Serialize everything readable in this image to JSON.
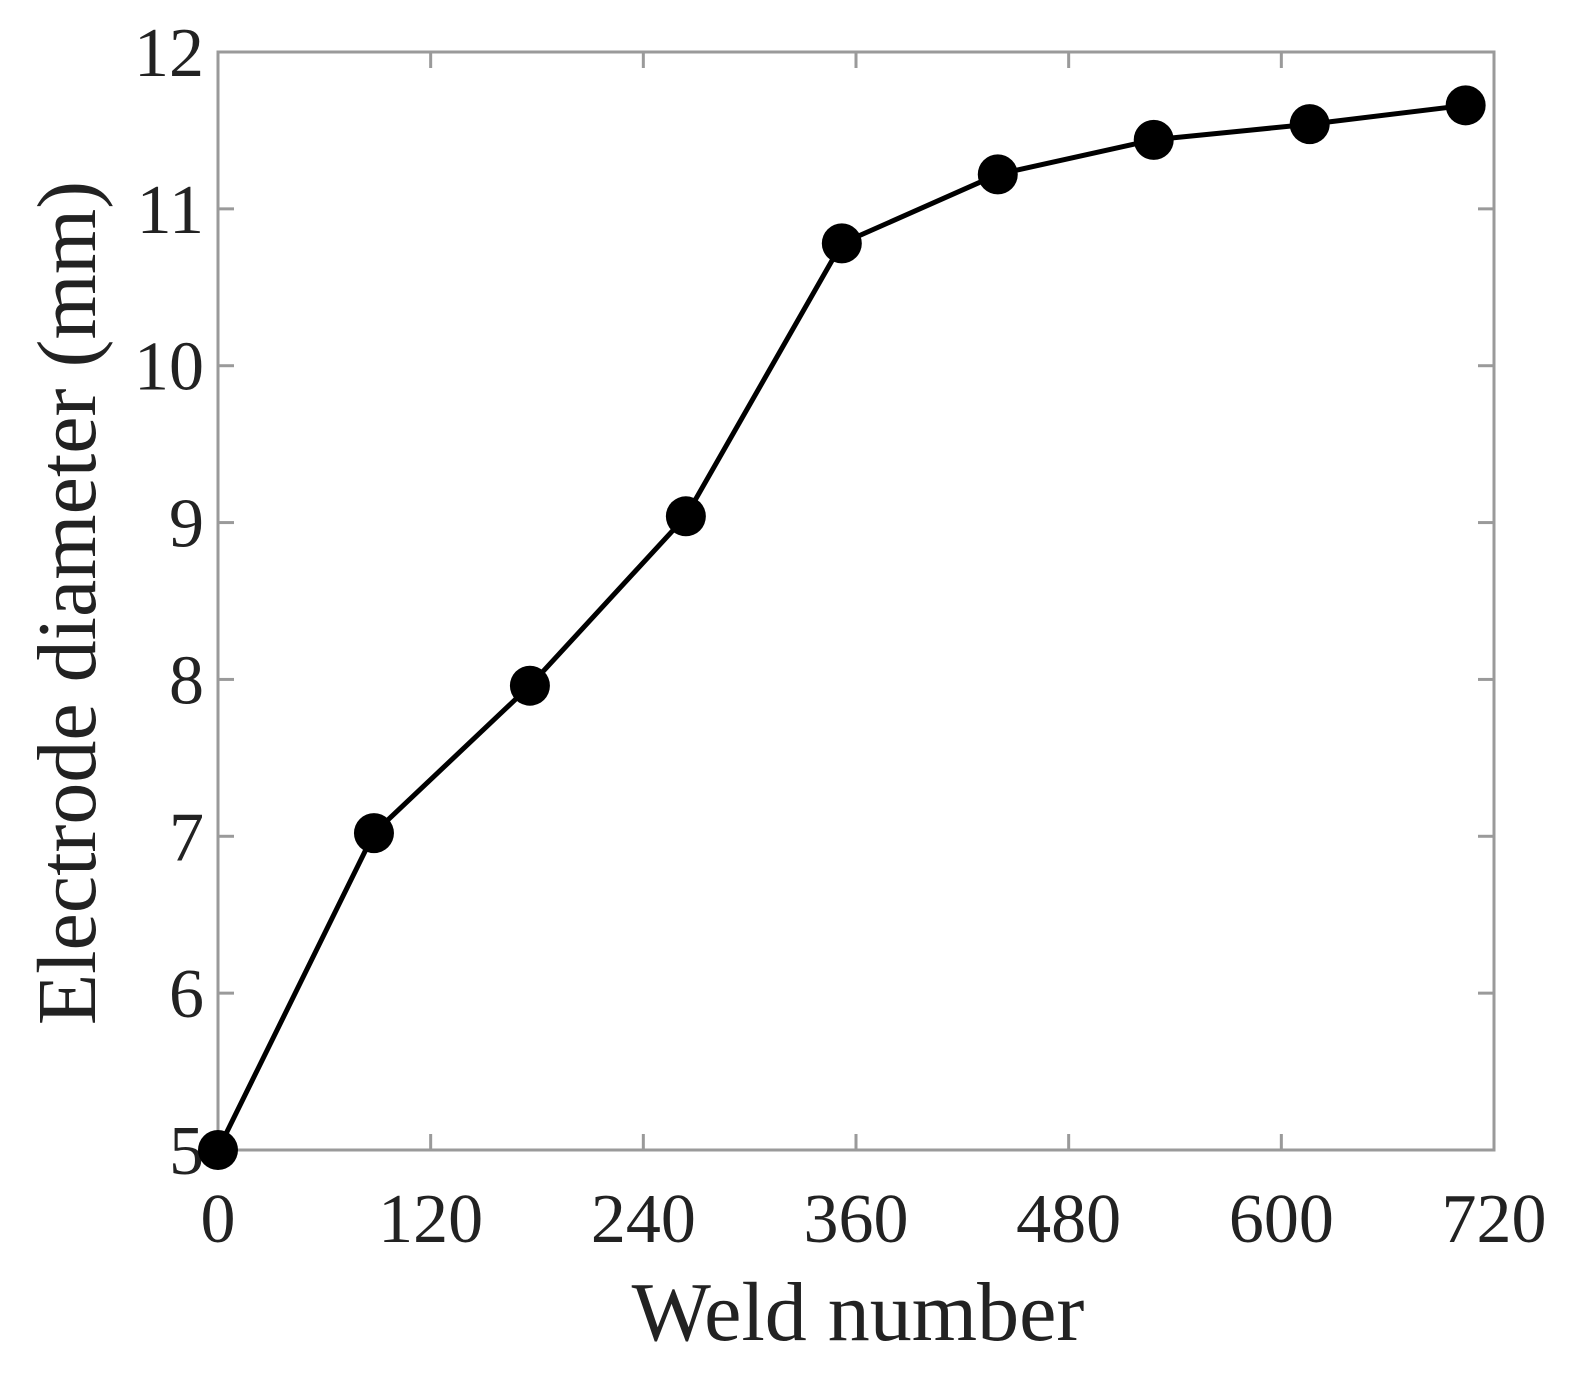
{
  "chart_data": {
    "type": "line",
    "title": "",
    "xlabel": "Weld number",
    "ylabel": "Electrode diameter (mm)",
    "xlim": [
      0,
      720
    ],
    "ylim": [
      5,
      12
    ],
    "xticks": [
      0,
      120,
      240,
      360,
      480,
      600,
      720
    ],
    "yticks": [
      5,
      6,
      7,
      8,
      9,
      10,
      11,
      12
    ],
    "grid": false,
    "legend": "none",
    "series": [
      {
        "color": "#000000",
        "marker": "circle",
        "x": [
          0,
          88,
          176,
          264,
          352,
          440,
          528,
          616,
          704
        ],
        "y": [
          5.0,
          7.02,
          7.96,
          9.04,
          10.78,
          11.22,
          11.44,
          11.54,
          11.66
        ]
      }
    ]
  }
}
